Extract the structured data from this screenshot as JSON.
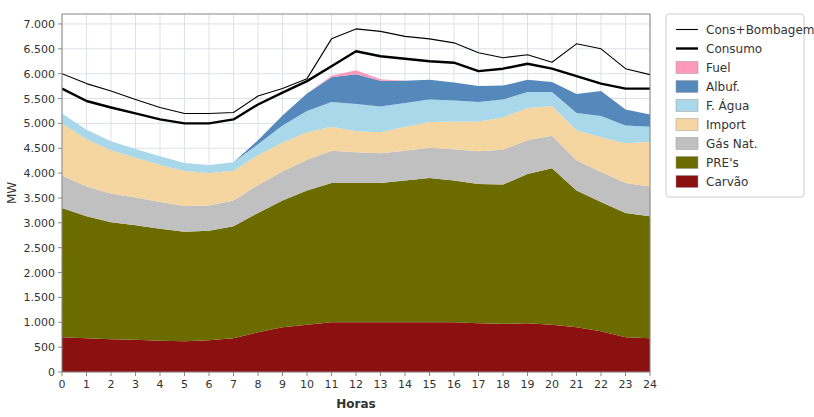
{
  "chart_data": {
    "type": "area",
    "stacked": true,
    "xlabel": "Horas",
    "ylabel": "MW",
    "x": [
      0,
      1,
      2,
      3,
      4,
      5,
      6,
      7,
      8,
      9,
      10,
      11,
      12,
      13,
      14,
      15,
      16,
      17,
      18,
      19,
      20,
      21,
      22,
      23,
      24
    ],
    "xlim": [
      0,
      24
    ],
    "xticks": [
      0,
      1,
      2,
      3,
      4,
      5,
      6,
      7,
      8,
      9,
      10,
      11,
      12,
      13,
      14,
      15,
      16,
      17,
      18,
      19,
      20,
      21,
      22,
      23,
      24
    ],
    "ylim": [
      0,
      7200
    ],
    "yticks": [
      0,
      500,
      {
        "value": 1000,
        "label": "1.000"
      },
      {
        "value": 1500,
        "label": "1.500"
      },
      {
        "value": 2000,
        "label": "2.000"
      },
      {
        "value": 2500,
        "label": "2.500"
      },
      {
        "value": 3000,
        "label": "3.000"
      },
      {
        "value": 3500,
        "label": "3.500"
      },
      {
        "value": 4000,
        "label": "4.000"
      },
      {
        "value": 4500,
        "label": "4.500"
      },
      {
        "value": 5000,
        "label": "5.000"
      },
      {
        "value": 5500,
        "label": "5.500"
      },
      {
        "value": 6000,
        "label": "6.000"
      },
      {
        "value": 6500,
        "label": "6.500"
      },
      {
        "value": 7000,
        "label": "7.000"
      }
    ],
    "grid": true,
    "legend": "right",
    "series": [
      {
        "name": "Carvão",
        "color": "#8B1111",
        "values": [
          700,
          680,
          660,
          650,
          630,
          620,
          640,
          680,
          800,
          900,
          950,
          1000,
          1000,
          1000,
          1000,
          1000,
          1000,
          980,
          970,
          980,
          950,
          900,
          820,
          700,
          680
        ]
      },
      {
        "name": "PRE's",
        "color": "#6B6B00",
        "values": [
          2600,
          2450,
          2350,
          2300,
          2250,
          2200,
          2200,
          2250,
          2400,
          2550,
          2700,
          2800,
          2800,
          2800,
          2850,
          2900,
          2850,
          2800,
          2800,
          3000,
          3150,
          2750,
          2600,
          2500,
          2450
        ]
      },
      {
        "name": "Gás Nat.",
        "color": "#C0C0C0",
        "values": [
          650,
          600,
          580,
          560,
          540,
          520,
          510,
          520,
          560,
          580,
          620,
          650,
          620,
          600,
          600,
          610,
          630,
          660,
          700,
          680,
          650,
          610,
          600,
          600,
          600
        ]
      },
      {
        "name": "Import",
        "color": "#F5D5A0",
        "values": [
          1050,
          950,
          870,
          800,
          750,
          700,
          650,
          600,
          600,
          580,
          550,
          480,
          420,
          420,
          480,
          520,
          560,
          600,
          650,
          650,
          600,
          600,
          700,
          800,
          900
        ]
      },
      {
        "name": "F. Água",
        "color": "#A8D8EA",
        "values": [
          200,
          190,
          180,
          175,
          170,
          165,
          165,
          170,
          220,
          350,
          430,
          500,
          550,
          520,
          480,
          450,
          420,
          390,
          360,
          320,
          280,
          350,
          430,
          360,
          300
        ]
      },
      {
        "name": "Albuf.",
        "color": "#5588BB",
        "values": [
          0,
          0,
          0,
          0,
          0,
          0,
          0,
          0,
          80,
          200,
          350,
          500,
          600,
          520,
          450,
          400,
          360,
          320,
          280,
          250,
          200,
          380,
          500,
          320,
          250
        ]
      },
      {
        "name": "Fuel",
        "color": "#FF99BB",
        "values": [
          0,
          0,
          0,
          0,
          0,
          0,
          0,
          0,
          0,
          0,
          0,
          30,
          80,
          30,
          0,
          0,
          0,
          0,
          0,
          0,
          0,
          0,
          0,
          0,
          0
        ]
      },
      {
        "name": "Cons+Bombagem",
        "type": "line",
        "color": "#000000",
        "line_style": "thin",
        "values": [
          6000,
          5800,
          5650,
          5480,
          5320,
          5200,
          5200,
          5220,
          5550,
          5700,
          5900,
          6700,
          6900,
          6850,
          6750,
          6700,
          6620,
          6420,
          6320,
          6380,
          6230,
          6600,
          6500,
          6100,
          5980
        ]
      },
      {
        "name": "Consumo",
        "type": "line",
        "color": "#000000",
        "line_style": "thick",
        "values": [
          5700,
          5450,
          5320,
          5200,
          5080,
          5000,
          5000,
          5080,
          5380,
          5620,
          5850,
          6150,
          6450,
          6350,
          6300,
          6250,
          6220,
          6050,
          6100,
          6200,
          6100,
          5950,
          5800,
          5700,
          5700
        ]
      }
    ]
  }
}
